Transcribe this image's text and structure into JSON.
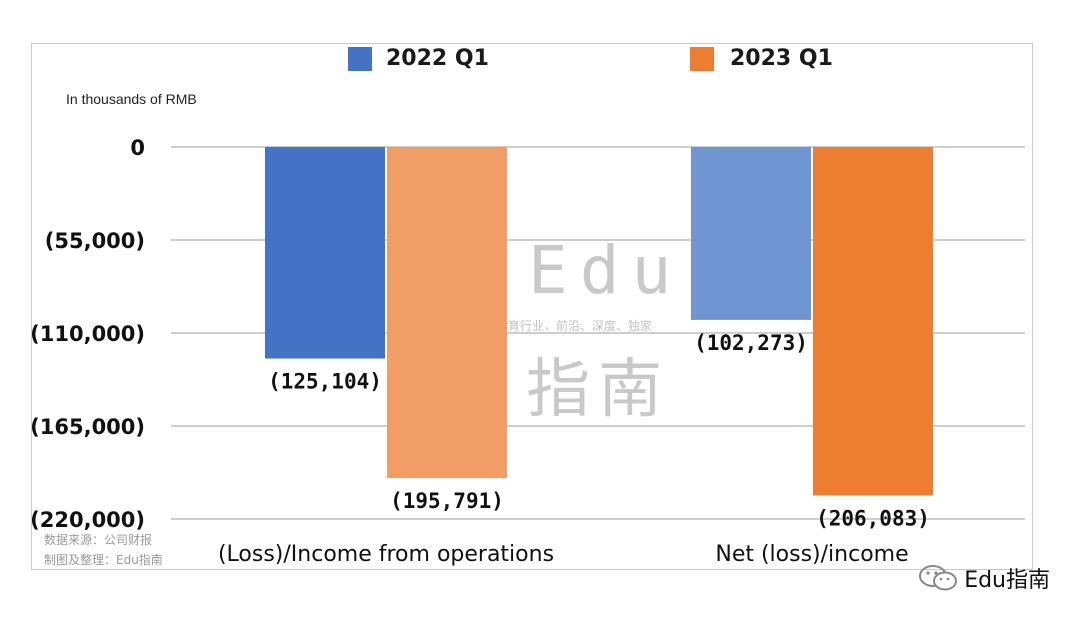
{
  "unit_label": "In thousands of RMB",
  "watermark": {
    "latin": "Edu",
    "tagline": "教育行业，前沿、深度、独家",
    "cjk": "指南"
  },
  "source_lines": [
    "数据来源：公司财报",
    "制图及整理：Edu指南"
  ],
  "brand": "Edu指南",
  "colors": {
    "2022_q1_legend": "#4472c4",
    "2023_q1_legend": "#ed7d31",
    "ops_2022": "#4472c4",
    "ops_2023": "#f19d66",
    "net_2022": "#6f95d2",
    "net_2023": "#ed7d31",
    "grid": "#9e9e9e"
  },
  "chart_data": {
    "type": "bar",
    "categories": [
      "(Loss)/Income from operations",
      "Net (loss)/income"
    ],
    "series": [
      {
        "name": "2022 Q1",
        "values": [
          -125104,
          -102273
        ],
        "labels": [
          "(125,104)",
          "(102,273)"
        ]
      },
      {
        "name": "2023 Q1",
        "values": [
          -195791,
          -206083
        ],
        "labels": [
          "(195,791)",
          "(206,083)"
        ]
      }
    ],
    "ylim": [
      -220000,
      0
    ],
    "yticks": [
      0,
      -55000,
      -110000,
      -165000,
      -220000
    ],
    "ytick_labels": [
      "0",
      "(55,000)",
      "(110,000)",
      "(165,000)",
      "(220,000)"
    ],
    "ylabel": "In thousands of RMB",
    "grid": true,
    "legend": "top"
  }
}
